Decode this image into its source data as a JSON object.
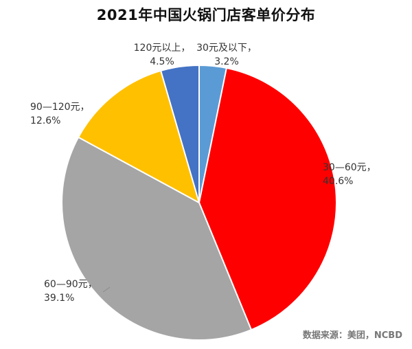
{
  "chart_data": {
    "type": "pie",
    "title": "2021年中国火锅门店客单价分布",
    "source": "数据来源：美团，NCBD",
    "slices": [
      {
        "name": "30元及以下",
        "value": 3.2,
        "label_line1": "30元及以下，",
        "label_line2": "3.2%",
        "color": "#5b9bd5"
      },
      {
        "name": "30—60元",
        "value": 40.6,
        "label_line1": "30—60元，",
        "label_line2": "40.6%",
        "color": "#ff0000"
      },
      {
        "name": "60—90元",
        "value": 39.1,
        "label_line1": "60—90元，",
        "label_line2": "39.1%",
        "color": "#a5a5a5"
      },
      {
        "name": "90—120元",
        "value": 12.6,
        "label_line1": "90—120元，",
        "label_line2": "12.6%",
        "color": "#ffc000"
      },
      {
        "name": "120元以上",
        "value": 4.5,
        "label_line1": "120元以上，",
        "label_line2": "4.5%",
        "color": "#4472c4"
      }
    ]
  }
}
